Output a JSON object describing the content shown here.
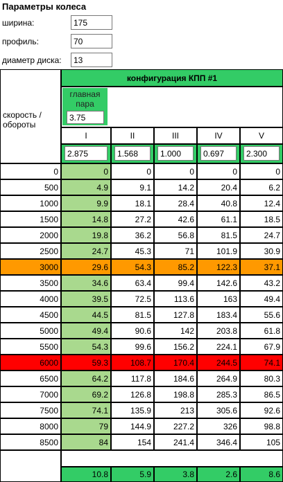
{
  "header": {
    "title": "Параметры колеса"
  },
  "fields": [
    {
      "label": "ширина:",
      "value": 175
    },
    {
      "label": "профиль:",
      "value": 70
    },
    {
      "label": "диаметр диска:",
      "value": 13
    }
  ],
  "table": {
    "config_title": "конфигурация КПП #1",
    "row_header": "скорость / обороты",
    "main_pair": {
      "label": "главная пара",
      "value": 3.75
    },
    "gears": [
      "I",
      "II",
      "III",
      "IV",
      "V"
    ],
    "ratios": [
      2.875,
      1.568,
      "1.000",
      0.697,
      "2.300"
    ],
    "rows": [
      {
        "rpm": 0,
        "values": [
          0,
          0,
          0,
          0,
          0
        ]
      },
      {
        "rpm": 500,
        "values": [
          4.9,
          9.1,
          14.2,
          20.4,
          6.2
        ]
      },
      {
        "rpm": 1000,
        "values": [
          9.9,
          18.1,
          28.4,
          40.8,
          12.4
        ]
      },
      {
        "rpm": 1500,
        "values": [
          14.8,
          27.2,
          42.6,
          61.1,
          18.5
        ]
      },
      {
        "rpm": 2000,
        "values": [
          19.8,
          36.2,
          56.8,
          81.5,
          24.7
        ]
      },
      {
        "rpm": 2500,
        "values": [
          24.7,
          45.3,
          71,
          101.9,
          30.9
        ]
      },
      {
        "rpm": 3000,
        "values": [
          29.6,
          54.3,
          85.2,
          122.3,
          37.1
        ],
        "color": "#ff9900"
      },
      {
        "rpm": 3500,
        "values": [
          34.6,
          63.4,
          99.4,
          142.6,
          43.2
        ]
      },
      {
        "rpm": 4000,
        "values": [
          39.5,
          72.5,
          113.6,
          163,
          49.4
        ]
      },
      {
        "rpm": 4500,
        "values": [
          44.5,
          81.5,
          127.8,
          183.4,
          55.6
        ]
      },
      {
        "rpm": 5000,
        "values": [
          49.4,
          90.6,
          142,
          203.8,
          61.8
        ]
      },
      {
        "rpm": 5500,
        "values": [
          54.3,
          99.6,
          156.2,
          224.1,
          67.9
        ]
      },
      {
        "rpm": 6000,
        "values": [
          59.3,
          108.7,
          170.4,
          244.5,
          74.1
        ],
        "color": "#ff0000"
      },
      {
        "rpm": 6500,
        "values": [
          64.2,
          117.8,
          184.6,
          264.9,
          80.3
        ]
      },
      {
        "rpm": 7000,
        "values": [
          69.2,
          126.8,
          198.8,
          285.3,
          86.5
        ]
      },
      {
        "rpm": 7500,
        "values": [
          74.1,
          135.9,
          213,
          305.6,
          92.6
        ]
      },
      {
        "rpm": 8000,
        "values": [
          79,
          144.9,
          227.2,
          326,
          98.8
        ]
      },
      {
        "rpm": 8500,
        "values": [
          84,
          154,
          241.4,
          346.4,
          105
        ]
      }
    ],
    "footer": [
      10.8,
      5.9,
      3.8,
      2.6,
      8.6
    ]
  }
}
